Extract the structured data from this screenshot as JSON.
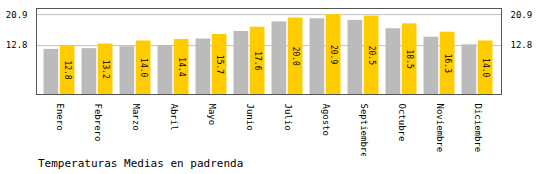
{
  "chart_data": {
    "type": "bar",
    "title": "Temperaturas Medias en padrenda",
    "categories": [
      "Enero",
      "Febrero",
      "Marzo",
      "Abril",
      "Mayo",
      "Junio",
      "Julio",
      "Agosto",
      "Septiembre",
      "Octubre",
      "Noviembre",
      "Diciembre"
    ],
    "series": [
      {
        "color": "#BBBBBB",
        "values": [
          11.8,
          12.0,
          12.5,
          12.8,
          14.5,
          16.5,
          19.0,
          19.8,
          19.4,
          17.2,
          15.0,
          13.0
        ]
      },
      {
        "color": "#FFCC00",
        "values": [
          12.8,
          13.2,
          14.0,
          14.4,
          15.7,
          17.6,
          20.0,
          20.9,
          20.5,
          18.5,
          16.3,
          14.0
        ],
        "value_labels": [
          "12.8",
          "13.2",
          "14.0",
          "14.4",
          "15.7",
          "17.6",
          "20.0",
          "20.9",
          "20.5",
          "18.5",
          "16.3",
          "14.0"
        ],
        "data_labels": true
      }
    ],
    "ylim": [
      0,
      22.5
    ],
    "yticks": [
      12.8,
      20.9
    ],
    "grid": true
  }
}
